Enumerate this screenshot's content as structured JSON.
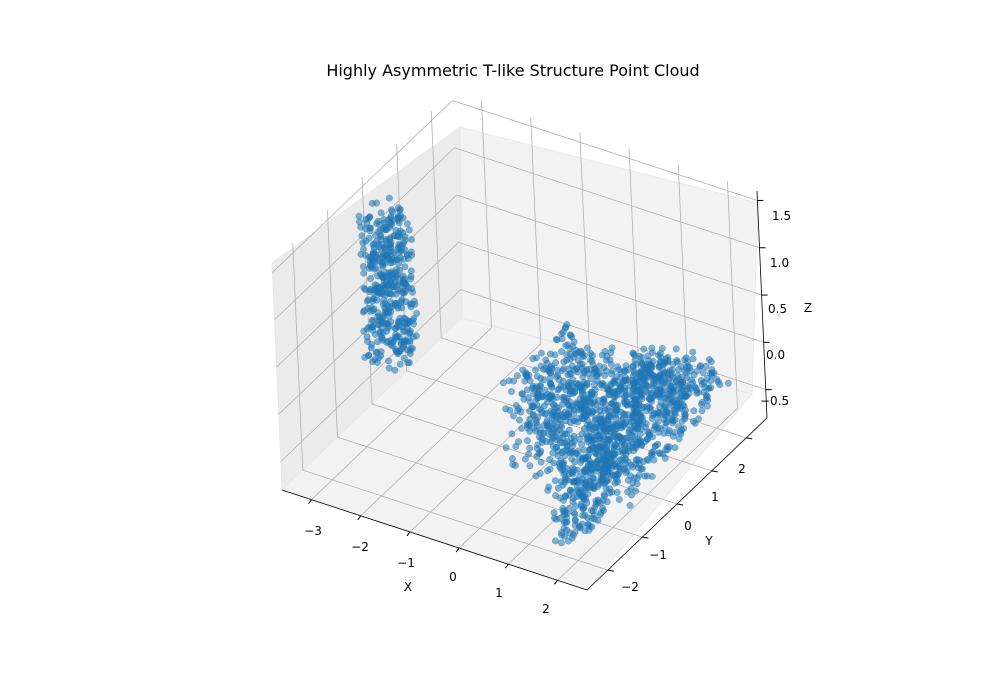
{
  "chart_data": {
    "type": "scatter",
    "title": "Highly Asymmetric T-like Structure Point Cloud",
    "xlabel": "X",
    "ylabel": "Y",
    "zlabel": "Z",
    "xlim": [
      -3.6,
      2.6
    ],
    "ylim": [
      -2.6,
      2.6
    ],
    "zlim": [
      -0.8,
      1.6
    ],
    "xticks": [
      -3,
      -2,
      -1,
      0,
      1,
      2
    ],
    "yticks": [
      -2,
      -1,
      0,
      1,
      2
    ],
    "zticks": [
      -0.5,
      0.0,
      0.5,
      1.0,
      1.5
    ],
    "xtick_labels": [
      "−3",
      "−2",
      "−1",
      "0",
      "1",
      "2"
    ],
    "ytick_labels": [
      "−2",
      "−1",
      "0",
      "1",
      "2"
    ],
    "ztick_labels": [
      "−0.5",
      "0.0",
      "0.5",
      "1.0",
      "1.5"
    ],
    "series": [
      {
        "color": "#1f77b4",
        "clusters": [
          {
            "shape": "cylinder",
            "center": [
              -3.3,
              -0.2,
              0.45
            ],
            "radius": 0.45,
            "z_range": [
              -0.35,
              1.2
            ],
            "count": 420
          },
          {
            "shape": "box",
            "x_range": [
              -0.3,
              2.3
            ],
            "y_range": [
              -0.9,
              0.9
            ],
            "z_range": [
              -0.6,
              0.35
            ],
            "count": 900
          },
          {
            "shape": "box",
            "x_range": [
              0.5,
              2.0
            ],
            "y_range": [
              -2.4,
              -1.0
            ],
            "z_range": [
              -0.6,
              -0.2
            ],
            "count": 260
          },
          {
            "shape": "box",
            "x_range": [
              1.8,
              2.3
            ],
            "y_range": [
              0.9,
              2.5
            ],
            "z_range": [
              -0.5,
              0.3
            ],
            "count": 260
          }
        ]
      }
    ],
    "grid": true
  }
}
